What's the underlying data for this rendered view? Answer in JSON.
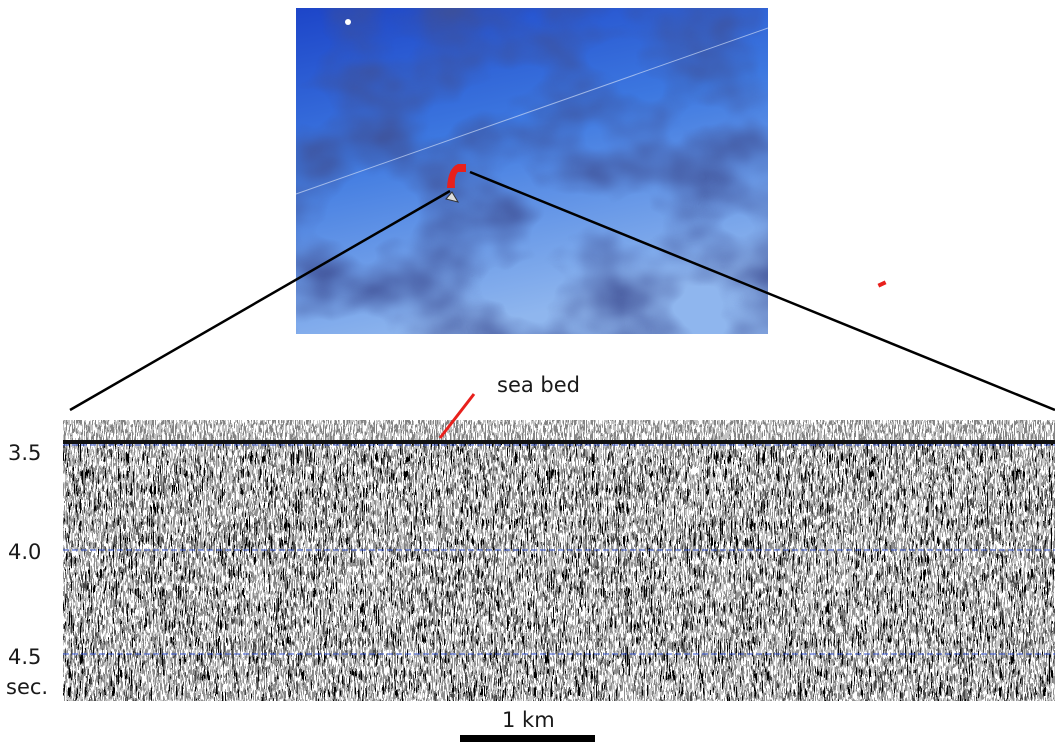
{
  "labels": {
    "sea_bed": "sea bed",
    "scale_bar": "1 km"
  },
  "time_axis": {
    "ticks": [
      "3.5",
      "4.0",
      "4.5"
    ],
    "unit": "sec."
  }
}
